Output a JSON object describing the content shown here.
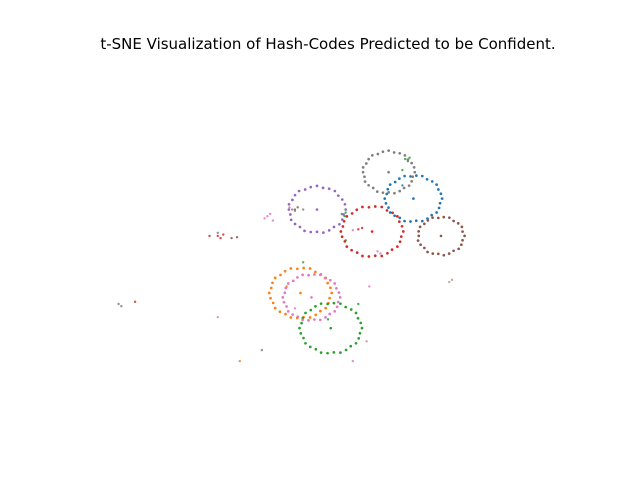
{
  "chart_data": {
    "type": "scatter",
    "title": "t-SNE Visualization of Hash-Codes Predicted to be Confident.",
    "xlabel": "",
    "ylabel": "",
    "axes_visible": false,
    "grid": false,
    "legend": "none",
    "xlim": [
      -45,
      45
    ],
    "ylim": [
      -42,
      42
    ],
    "series": [
      {
        "color": "#1f77b4",
        "center": [
          15.5,
          10.0
        ],
        "ring_points": 30,
        "ring_radius": 1.1,
        "stray_points": [
          [
            13.5,
            13.0
          ]
        ]
      },
      {
        "color": "#ff7f0e",
        "center": [
          -5.0,
          -11.5
        ],
        "ring_points": 30,
        "ring_radius": 1.2,
        "stray_points": [
          [
            -7.5,
            -10.0
          ],
          [
            -16.0,
            -27.0
          ]
        ]
      },
      {
        "color": "#2ca02c",
        "center": [
          0.5,
          -19.5
        ],
        "ring_points": 30,
        "ring_radius": 1.2,
        "stray_points": [
          [
            14.0,
            19.0
          ],
          [
            14.5,
            18.5
          ],
          [
            14.8,
            19.3
          ],
          [
            13.5,
            16.5
          ],
          [
            2.5,
            6.5
          ],
          [
            3.0,
            6.0
          ],
          [
            3.2,
            6.8
          ],
          [
            3.2,
            0.5
          ],
          [
            -4.5,
            -4.5
          ],
          [
            5.5,
            -14.0
          ],
          [
            0.0,
            -17.5
          ]
        ]
      },
      {
        "color": "#d62728",
        "center": [
          8.0,
          2.5
        ],
        "ring_points": 30,
        "ring_radius": 1.2,
        "stray_points": [
          [
            5.5,
            3.0
          ],
          [
            6.2,
            3.3
          ],
          [
            -20.0,
            1.5
          ],
          [
            -19.5,
            1.0
          ],
          [
            -21.5,
            1.5
          ],
          [
            -35.0,
            -13.5
          ],
          [
            -19.0,
            1.8
          ]
        ]
      },
      {
        "color": "#9467bd",
        "center": [
          -2.0,
          7.5
        ],
        "ring_points": 28,
        "ring_radius": 1.1,
        "stray_points": []
      },
      {
        "color": "#8c564b",
        "center": [
          20.5,
          1.5
        ],
        "ring_points": 26,
        "ring_radius": 0.9,
        "stray_points": [
          [
            -17.5,
            1.0
          ],
          [
            -16.5,
            1.2
          ],
          [
            -6.0,
            7.5
          ],
          [
            -5.5,
            8.0
          ]
        ]
      },
      {
        "color": "#e377c2",
        "center": [
          -3.0,
          -12.5
        ],
        "ring_points": 30,
        "ring_radius": 1.1,
        "stray_points": [
          [
            -11.5,
            5.5
          ],
          [
            -11.0,
            6.0
          ],
          [
            -10.0,
            5.0
          ],
          [
            -10.5,
            6.5
          ],
          [
            4.5,
            2.8
          ],
          [
            -7.0,
            8.0
          ],
          [
            9.0,
            -2.0
          ],
          [
            9.5,
            -2.5
          ],
          [
            7.5,
            -10.0
          ],
          [
            -6.0,
            -15.0
          ],
          [
            4.5,
            -27.0
          ]
        ]
      },
      {
        "color": "#7f7f7f",
        "center": [
          11.0,
          16.0
        ],
        "ring_points": 28,
        "ring_radius": 1.0,
        "stray_points": [
          [
            -38.0,
            -14.0
          ],
          [
            -37.5,
            -14.5
          ],
          [
            -6.5,
            7.5
          ],
          [
            -6.0,
            7.2
          ],
          [
            -4.5,
            7.5
          ],
          [
            -20.0,
            2.2
          ],
          [
            -12.0,
            -24.5
          ]
        ]
      },
      {
        "color": "#bcbd22",
        "center": null,
        "ring_points": 0,
        "ring_radius": 0,
        "stray_points": []
      },
      {
        "color": "#17becf",
        "center": null,
        "ring_points": 0,
        "ring_radius": 0,
        "stray_points": []
      }
    ]
  },
  "extra_scatter": {
    "color": "#c49c94",
    "points": [
      [
        22.0,
        -9.0
      ],
      [
        22.5,
        -8.5
      ],
      [
        7.0,
        -22.5
      ],
      [
        -20.0,
        -17.0
      ]
    ]
  }
}
